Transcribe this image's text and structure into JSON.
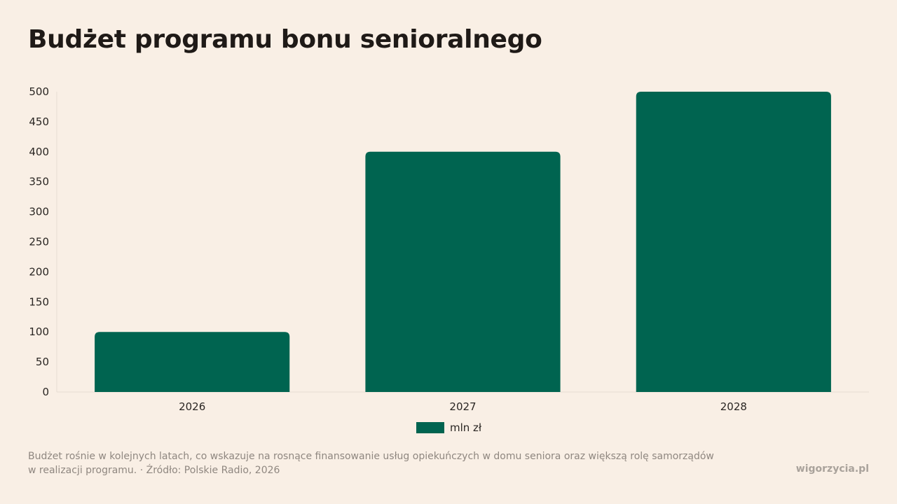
{
  "header": {
    "title": "Budżet programu bonu senioralnego"
  },
  "chart_data": {
    "type": "bar",
    "categories": [
      "2026",
      "2027",
      "2028"
    ],
    "series": [
      {
        "name": "mln zł",
        "values": [
          100,
          400,
          500
        ]
      }
    ],
    "ylim": [
      0,
      500
    ],
    "yticks": [
      0,
      50,
      100,
      150,
      200,
      250,
      300,
      350,
      400,
      450,
      500
    ],
    "xlabel": "",
    "ylabel": "",
    "grid": false,
    "legend_position": "bottom-center",
    "bar_color": "#006450"
  },
  "legend": {
    "label": "mln zł",
    "color": "#006450"
  },
  "footnote": "Budżet rośnie w kolejnych latach, co wskazuje na rosnące finansowanie usług opiekuńczych w domu seniora oraz większą rolę samorządów w realizacji programu. · Źródło: Polskie Radio, 2026",
  "brand": "wigorzycia.pl"
}
